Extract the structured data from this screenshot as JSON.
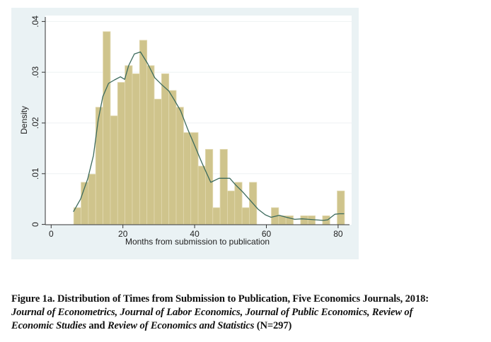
{
  "chart_data": {
    "type": "bar",
    "subtype": "histogram_with_kde",
    "title": "",
    "xlabel": "Months from submission to publication",
    "ylabel": "Density",
    "xlim": [
      -2,
      82.8
    ],
    "ylim": [
      0,
      0.041
    ],
    "x_ticks": [
      0,
      20,
      40,
      60,
      80
    ],
    "x_tick_labels": [
      "0",
      "20",
      "40",
      "60",
      "80"
    ],
    "y_ticks": [
      0,
      0.01,
      0.02,
      0.03,
      0.04
    ],
    "y_tick_labels": [
      "0",
      ".01",
      ".02",
      ".03",
      ".04"
    ],
    "grid": true,
    "legend": null,
    "bin_start": 6.3,
    "bin_width": 2.04,
    "n": 297,
    "bin_counts": [
      2,
      5,
      6,
      14,
      23,
      13,
      17,
      19,
      18,
      22,
      19,
      15,
      18,
      16,
      14,
      11,
      11,
      7,
      9,
      2,
      9,
      4,
      5,
      2,
      5,
      0,
      0,
      2,
      1,
      1,
      0,
      1,
      1,
      0,
      1,
      0,
      4
    ],
    "values": [
      0.0033,
      0.0083,
      0.0099,
      0.0231,
      0.038,
      0.0214,
      0.028,
      0.0313,
      0.0297,
      0.0363,
      0.0313,
      0.0247,
      0.0297,
      0.0264,
      0.0231,
      0.0181,
      0.0181,
      0.0115,
      0.0148,
      0.0033,
      0.0148,
      0.0066,
      0.0083,
      0.0033,
      0.0083,
      0,
      0,
      0.0033,
      0.0017,
      0.0017,
      0,
      0.0017,
      0.0017,
      0,
      0.0017,
      0,
      0.0066
    ],
    "series": [
      {
        "name": "Histogram (density)",
        "type": "bar",
        "color": "#CFC48C"
      },
      {
        "name": "Kernel density",
        "type": "line",
        "color": "#3C6A5C",
        "x": [
          6.2,
          8.2,
          10.2,
          11.8,
          13.1,
          14.4,
          16.0,
          17.7,
          19.3,
          20.5,
          21.6,
          23.2,
          24.9,
          26.9,
          28.9,
          30.9,
          32.8,
          34.2,
          36.1,
          38.1,
          40.1,
          42.0,
          44.5,
          46.8,
          49.8,
          51.4,
          53.4,
          55.4,
          57.7,
          59.7,
          61.3,
          63.6,
          65.6,
          67.9,
          69.9,
          71.8,
          73.8,
          75.8,
          77.1,
          79.1,
          80.4,
          81.7
        ],
        "y": [
          0.0025,
          0.005,
          0.009,
          0.0136,
          0.0205,
          0.0252,
          0.0278,
          0.0285,
          0.0291,
          0.0286,
          0.0313,
          0.0336,
          0.034,
          0.0317,
          0.0289,
          0.0275,
          0.0263,
          0.0247,
          0.0224,
          0.0187,
          0.0154,
          0.0122,
          0.0083,
          0.0091,
          0.0091,
          0.0078,
          0.0064,
          0.0048,
          0.003,
          0.0019,
          0.0014,
          0.0018,
          0.0014,
          0.001,
          0.0011,
          0.001,
          0.0009,
          0.0008,
          0.0009,
          0.002,
          0.0021,
          0.0021
        ]
      }
    ]
  },
  "figure": {
    "y_axis_title": "Density",
    "x_axis_title": "Months from submission to publication",
    "y_tick_labels": [
      "0",
      ".01",
      ".02",
      ".03",
      ".04"
    ],
    "x_tick_labels": [
      "0",
      "20",
      "40",
      "60",
      "80"
    ]
  },
  "caption": {
    "line1": "Figure 1a. Distribution of Times from Submission to Publication, Five Economics Journals, 2018:",
    "line2": "Journal of Econometrics, Journal of Labor Economics, Journal of Public Economics, Review of",
    "line3_part1": "Economic Studies",
    "line3_part2": " and ",
    "line3_part3": "Review of Economics and Statistics",
    "line3_part4": " (N=297)"
  },
  "colors": {
    "outer_background": "#EAF2F4",
    "plot_background": "#FFFFFF",
    "bar_fill": "#CFC48C",
    "bar_edge": "#E2D9B0",
    "kde_line": "#3C6A5C",
    "axis": "#333333",
    "grid": "#EEF2F3"
  }
}
